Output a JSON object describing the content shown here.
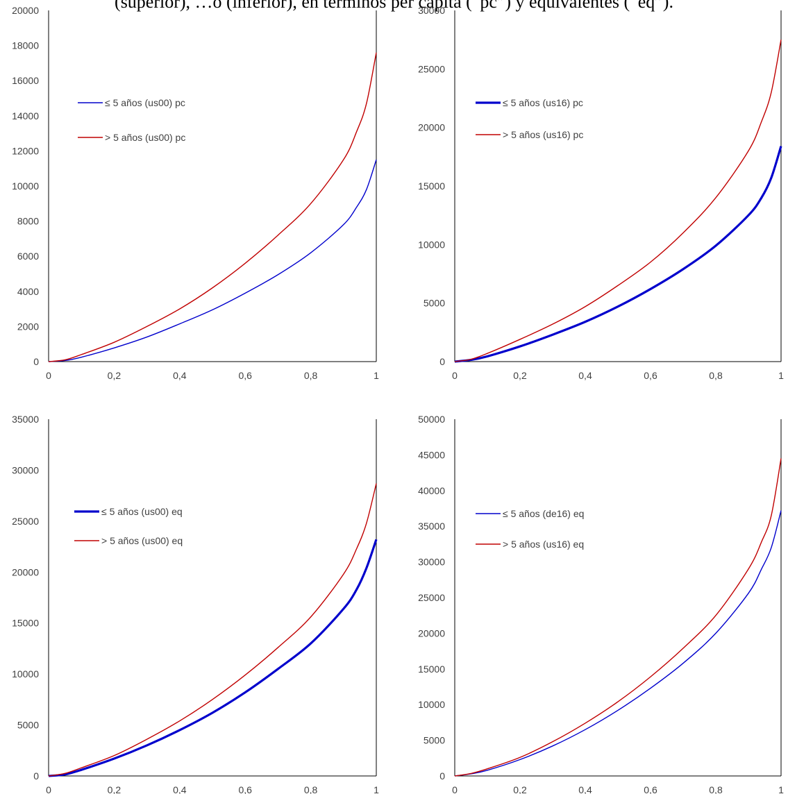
{
  "caption": "(superior), …o (inferior), en términos per cápita (“pc”) y equivalentes (“eq”).",
  "chart_data": [
    {
      "type": "line",
      "title": "",
      "xlabel": "",
      "ylabel": "",
      "xlim": [
        0,
        1
      ],
      "ylim": [
        0,
        20000
      ],
      "xticks": [
        "0",
        "0,2",
        "0,4",
        "0,6",
        "0,8",
        "1"
      ],
      "yticks": [
        "0",
        "2000",
        "4000",
        "6000",
        "8000",
        "10000",
        "12000",
        "14000",
        "16000",
        "18000",
        "20000"
      ],
      "x": [
        0,
        0.05,
        0.1,
        0.2,
        0.3,
        0.4,
        0.5,
        0.6,
        0.7,
        0.8,
        0.9,
        0.94,
        0.97,
        1.0
      ],
      "legend_position": "upper-left",
      "series": [
        {
          "name": "≤ 5 años (us00) pc",
          "color": "#0000cc",
          "width": "thin",
          "values": [
            0,
            60,
            250,
            780,
            1400,
            2150,
            2950,
            3900,
            4950,
            6200,
            7800,
            8800,
            9800,
            11500
          ]
        },
        {
          "name": "> 5 años (us00) pc",
          "color": "#c00000",
          "width": "thin",
          "values": [
            0,
            100,
            400,
            1100,
            2000,
            3000,
            4200,
            5600,
            7200,
            9000,
            11500,
            13100,
            14700,
            17600
          ]
        }
      ]
    },
    {
      "type": "line",
      "title": "",
      "xlabel": "",
      "ylabel": "",
      "xlim": [
        0,
        1
      ],
      "ylim": [
        0,
        30000
      ],
      "xticks": [
        "0",
        "0,2",
        "0,4",
        "0,6",
        "0,8",
        "1"
      ],
      "yticks": [
        "0",
        "5000",
        "10000",
        "15000",
        "20000",
        "25000",
        "30000"
      ],
      "x": [
        0,
        0.05,
        0.1,
        0.2,
        0.3,
        0.4,
        0.5,
        0.6,
        0.7,
        0.8,
        0.9,
        0.94,
        0.97,
        1.0
      ],
      "legend_position": "upper-left",
      "series": [
        {
          "name": "≤ 5 años (us16) pc",
          "color": "#0000cc",
          "width": "thick",
          "values": [
            0,
            150,
            450,
            1300,
            2300,
            3400,
            4700,
            6200,
            7900,
            9900,
            12500,
            14000,
            15700,
            18400
          ]
        },
        {
          "name": "> 5 años (us16) pc",
          "color": "#c00000",
          "width": "thin",
          "values": [
            0,
            200,
            700,
            1900,
            3200,
            4700,
            6500,
            8500,
            11000,
            14000,
            18000,
            20500,
            23000,
            27500
          ]
        }
      ]
    },
    {
      "type": "line",
      "title": "",
      "xlabel": "",
      "ylabel": "",
      "xlim": [
        0,
        1
      ],
      "ylim": [
        0,
        35000
      ],
      "xticks": [
        "0",
        "0,2",
        "0,4",
        "0,6",
        "0,8",
        "1"
      ],
      "yticks": [
        "0",
        "5000",
        "10000",
        "15000",
        "20000",
        "25000",
        "30000",
        "35000"
      ],
      "x": [
        0,
        0.05,
        0.1,
        0.2,
        0.3,
        0.4,
        0.5,
        0.6,
        0.7,
        0.8,
        0.9,
        0.94,
        0.97,
        1.0
      ],
      "legend_position": "upper-left",
      "series": [
        {
          "name": "≤ 5 años (us00) eq",
          "color": "#0000cc",
          "width": "thick",
          "values": [
            0,
            150,
            600,
            1700,
            3000,
            4500,
            6200,
            8200,
            10500,
            13000,
            16400,
            18300,
            20400,
            23200
          ]
        },
        {
          "name": "> 5 años (us00) eq",
          "color": "#c00000",
          "width": "thin",
          "values": [
            0,
            250,
            800,
            2000,
            3600,
            5400,
            7500,
            9900,
            12600,
            15600,
            19800,
            22300,
            24800,
            28700
          ]
        }
      ]
    },
    {
      "type": "line",
      "title": "",
      "xlabel": "",
      "ylabel": "",
      "xlim": [
        0,
        1
      ],
      "ylim": [
        0,
        50000
      ],
      "xticks": [
        "0",
        "0,2",
        "0,4",
        "0,6",
        "0,8",
        "1"
      ],
      "yticks": [
        "0",
        "5000",
        "10000",
        "15000",
        "20000",
        "25000",
        "30000",
        "35000",
        "40000",
        "45000",
        "50000"
      ],
      "x": [
        0,
        0.05,
        0.1,
        0.2,
        0.3,
        0.4,
        0.5,
        0.6,
        0.7,
        0.8,
        0.9,
        0.94,
        0.97,
        1.0
      ],
      "legend_position": "upper-left",
      "series": [
        {
          "name": "≤ 5 años (de16) eq",
          "color": "#0000cc",
          "width": "thin",
          "values": [
            0,
            300,
            800,
            2300,
            4200,
            6500,
            9200,
            12300,
            15800,
            20000,
            25600,
            29000,
            32000,
            37200
          ]
        },
        {
          "name": "> 5 años (us16) eq",
          "color": "#c00000",
          "width": "thin",
          "values": [
            0,
            350,
            1000,
            2600,
            4800,
            7400,
            10400,
            13900,
            17900,
            22500,
            29000,
            32800,
            36500,
            44500
          ]
        }
      ]
    }
  ]
}
